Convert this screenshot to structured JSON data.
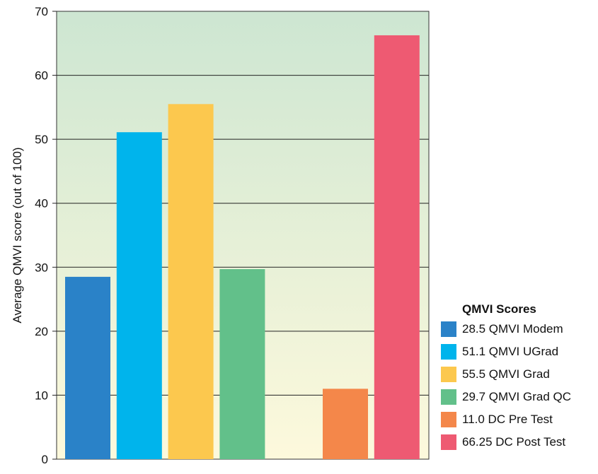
{
  "chart_data": {
    "type": "bar",
    "ylabel": "Average QMVI score (out of 100)",
    "ylim": [
      0,
      70
    ],
    "yticks": [
      0,
      10,
      20,
      30,
      40,
      50,
      60,
      70
    ],
    "grid": true,
    "legend_title": "QMVI Scores",
    "legend_position": "bottom-right, outside plot",
    "series": [
      {
        "name": "28.5 QMVI Modem",
        "value": 28.5,
        "color": "#2a82c8"
      },
      {
        "name": "51.1 QMVI UGrad",
        "value": 51.1,
        "color": "#00b4ec"
      },
      {
        "name": "55.5 QMVI Grad",
        "value": 55.5,
        "color": "#fcc84e"
      },
      {
        "name": "29.7 QMVI Grad QC",
        "value": 29.7,
        "color": "#62c08a"
      },
      {
        "name": "11.0 DC Pre Test",
        "value": 11.0,
        "color": "#f4874a"
      },
      {
        "name": "66.25 DC Post Test",
        "value": 66.25,
        "color": "#ee5a72"
      }
    ],
    "background_gradient": {
      "top": "#cde6d2",
      "bottom": "#fdf9dc"
    }
  }
}
